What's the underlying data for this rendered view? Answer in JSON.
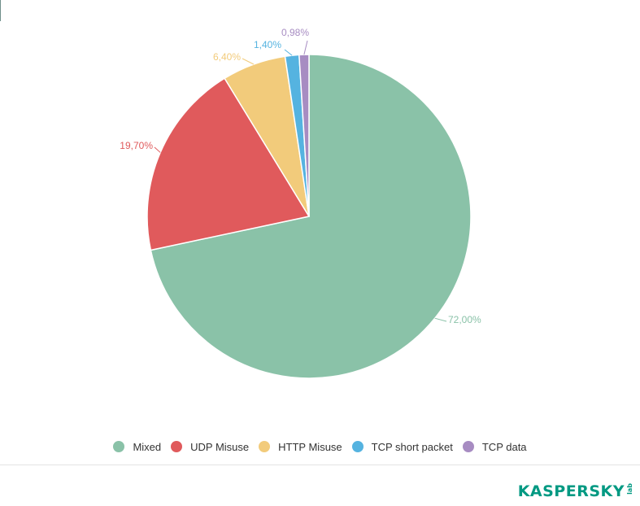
{
  "chart_data": {
    "type": "pie",
    "title": "",
    "categories": [
      "Mixed",
      "UDP Misuse",
      "HTTP Misuse",
      "TCP short packet",
      "TCP data"
    ],
    "values": [
      72.0,
      19.7,
      6.4,
      1.4,
      0.98
    ],
    "value_labels": [
      "72,00%",
      "19,70%",
      "6,40%",
      "1,40%",
      "0,98%"
    ],
    "colors": [
      "#8ac2a8",
      "#e05a5c",
      "#f2cb7b",
      "#55b3e0",
      "#a78cc2"
    ],
    "legend_position": "bottom"
  },
  "legend": {
    "items": [
      {
        "label": "Mixed",
        "color": "#8ac2a8"
      },
      {
        "label": "UDP Misuse",
        "color": "#e05a5c"
      },
      {
        "label": "HTTP Misuse",
        "color": "#f2cb7b"
      },
      {
        "label": "TCP short packet",
        "color": "#55b3e0"
      },
      {
        "label": "TCP data",
        "color": "#a78cc2"
      }
    ]
  },
  "brand": {
    "wordmark": "KASPERSKY",
    "sub": "lab",
    "color": "#009982"
  }
}
